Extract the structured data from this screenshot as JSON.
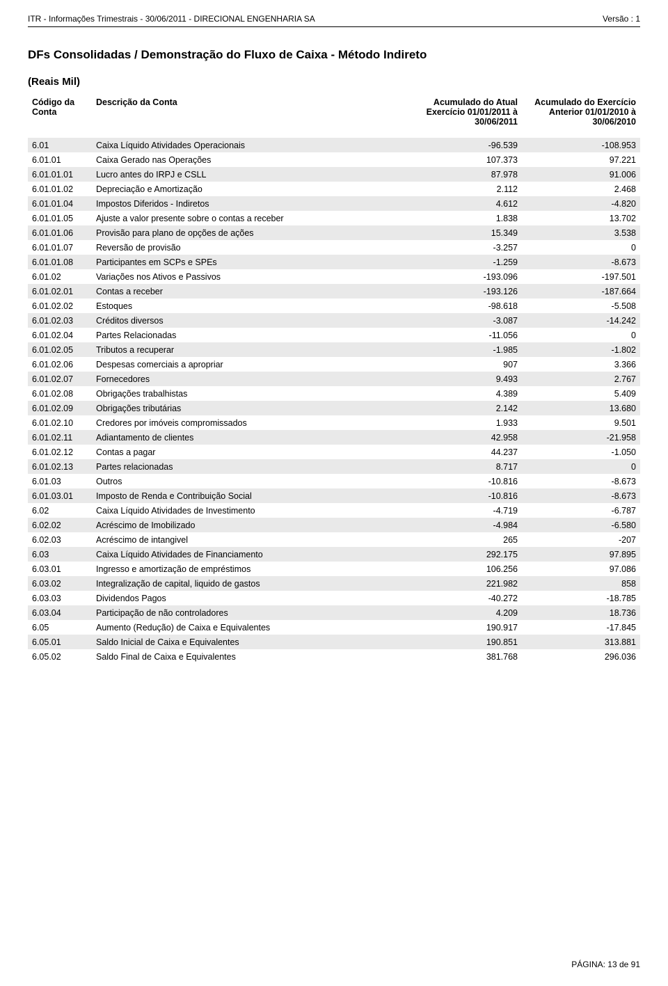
{
  "header": {
    "left": "ITR - Informações Trimestrais - 30/06/2011 - DIRECIONAL ENGENHARIA SA",
    "right": "Versão : 1"
  },
  "title": "DFs Consolidadas / Demonstração do Fluxo de Caixa  - Método Indireto",
  "subtitle": "(Reais Mil)",
  "columns": {
    "code": "Código da Conta",
    "desc": "Descrição da Conta",
    "curr": "Acumulado do Atual Exercício 01/01/2011 à 30/06/2011",
    "prev": "Acumulado do Exercício Anterior 01/01/2010 à 30/06/2010"
  },
  "rows": [
    {
      "code": "6.01",
      "desc": "Caixa Líquido Atividades Operacionais",
      "curr": "-96.539",
      "prev": "-108.953"
    },
    {
      "code": "6.01.01",
      "desc": "Caixa Gerado nas Operações",
      "curr": "107.373",
      "prev": "97.221"
    },
    {
      "code": "6.01.01.01",
      "desc": "Lucro antes do IRPJ e CSLL",
      "curr": "87.978",
      "prev": "91.006"
    },
    {
      "code": "6.01.01.02",
      "desc": "Depreciação e Amortização",
      "curr": "2.112",
      "prev": "2.468"
    },
    {
      "code": "6.01.01.04",
      "desc": "Impostos Diferidos - Indiretos",
      "curr": "4.612",
      "prev": "-4.820"
    },
    {
      "code": "6.01.01.05",
      "desc": "Ajuste a valor presente sobre o contas a receber",
      "curr": "1.838",
      "prev": "13.702"
    },
    {
      "code": "6.01.01.06",
      "desc": "Provisão para plano de opções de ações",
      "curr": "15.349",
      "prev": "3.538"
    },
    {
      "code": "6.01.01.07",
      "desc": "Reversão de provisão",
      "curr": "-3.257",
      "prev": "0"
    },
    {
      "code": "6.01.01.08",
      "desc": "Participantes em SCPs e SPEs",
      "curr": "-1.259",
      "prev": "-8.673"
    },
    {
      "code": "6.01.02",
      "desc": "Variações nos Ativos e Passivos",
      "curr": "-193.096",
      "prev": "-197.501"
    },
    {
      "code": "6.01.02.01",
      "desc": "Contas a receber",
      "curr": "-193.126",
      "prev": "-187.664"
    },
    {
      "code": "6.01.02.02",
      "desc": "Estoques",
      "curr": "-98.618",
      "prev": "-5.508"
    },
    {
      "code": "6.01.02.03",
      "desc": "Créditos diversos",
      "curr": "-3.087",
      "prev": "-14.242"
    },
    {
      "code": "6.01.02.04",
      "desc": "Partes Relacionadas",
      "curr": "-11.056",
      "prev": "0"
    },
    {
      "code": "6.01.02.05",
      "desc": "Tributos a recuperar",
      "curr": "-1.985",
      "prev": "-1.802"
    },
    {
      "code": "6.01.02.06",
      "desc": "Despesas comerciais a apropriar",
      "curr": "907",
      "prev": "3.366"
    },
    {
      "code": "6.01.02.07",
      "desc": "Fornecedores",
      "curr": "9.493",
      "prev": "2.767"
    },
    {
      "code": "6.01.02.08",
      "desc": "Obrigações trabalhistas",
      "curr": "4.389",
      "prev": "5.409"
    },
    {
      "code": "6.01.02.09",
      "desc": "Obrigações tributárias",
      "curr": "2.142",
      "prev": "13.680"
    },
    {
      "code": "6.01.02.10",
      "desc": "Credores por imóveis compromissados",
      "curr": "1.933",
      "prev": "9.501"
    },
    {
      "code": "6.01.02.11",
      "desc": "Adiantamento de clientes",
      "curr": "42.958",
      "prev": "-21.958"
    },
    {
      "code": "6.01.02.12",
      "desc": "Contas a pagar",
      "curr": "44.237",
      "prev": "-1.050"
    },
    {
      "code": "6.01.02.13",
      "desc": "Partes relacionadas",
      "curr": "8.717",
      "prev": "0"
    },
    {
      "code": "6.01.03",
      "desc": "Outros",
      "curr": "-10.816",
      "prev": "-8.673"
    },
    {
      "code": "6.01.03.01",
      "desc": "Imposto de Renda e Contribuição Social",
      "curr": "-10.816",
      "prev": "-8.673"
    },
    {
      "code": "6.02",
      "desc": "Caixa Líquido Atividades de Investimento",
      "curr": "-4.719",
      "prev": "-6.787"
    },
    {
      "code": "6.02.02",
      "desc": "Acréscimo de Imobilizado",
      "curr": "-4.984",
      "prev": "-6.580"
    },
    {
      "code": "6.02.03",
      "desc": "Acréscimo de intangivel",
      "curr": "265",
      "prev": "-207"
    },
    {
      "code": "6.03",
      "desc": "Caixa Líquido Atividades de Financiamento",
      "curr": "292.175",
      "prev": "97.895"
    },
    {
      "code": "6.03.01",
      "desc": "Ingresso e amortização de empréstimos",
      "curr": "106.256",
      "prev": "97.086"
    },
    {
      "code": "6.03.02",
      "desc": "Integralização de capital, liquido de gastos",
      "curr": "221.982",
      "prev": "858"
    },
    {
      "code": "6.03.03",
      "desc": "Dividendos Pagos",
      "curr": "-40.272",
      "prev": "-18.785"
    },
    {
      "code": "6.03.04",
      "desc": "Participação de não controladores",
      "curr": "4.209",
      "prev": "18.736"
    },
    {
      "code": "6.05",
      "desc": "Aumento (Redução) de Caixa e Equivalentes",
      "curr": "190.917",
      "prev": "-17.845"
    },
    {
      "code": "6.05.01",
      "desc": "Saldo Inicial de Caixa e Equivalentes",
      "curr": "190.851",
      "prev": "313.881"
    },
    {
      "code": "6.05.02",
      "desc": "Saldo Final de Caixa e Equivalentes",
      "curr": "381.768",
      "prev": "296.036"
    }
  ],
  "footer": "PÁGINA: 13 de 91",
  "style": {
    "stripe_dark": "#e9e9e9",
    "stripe_light": "#ffffff",
    "text_color": "#000000",
    "body_font_size": 12.5,
    "title_font_size": 17,
    "header_font_size": 12
  }
}
